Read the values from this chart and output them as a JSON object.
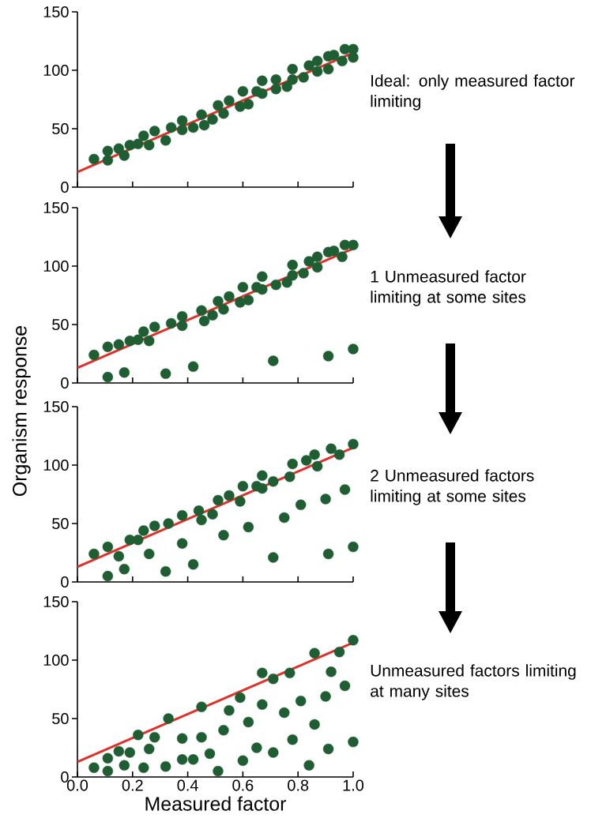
{
  "chart_data": [
    {
      "type": "scatter",
      "xlim": [
        0,
        1
      ],
      "ylim": [
        0,
        150
      ],
      "xticks": [
        {
          "value": 0,
          "label": null
        },
        {
          "value": 0.2,
          "label": null
        },
        {
          "value": 0.4,
          "label": null
        },
        {
          "value": 0.6,
          "label": null
        },
        {
          "value": 0.8,
          "label": null
        },
        {
          "value": 1,
          "label": null
        }
      ],
      "yticks": [
        0,
        50,
        100,
        150
      ],
      "tick_labels": "y",
      "marker": "circle",
      "annotations": [
        "Ideal: only measured factor limiting"
      ],
      "series": [
        {
          "color": "#1e5e32",
          "x": [
            0.06,
            0.11,
            0.11,
            0.15,
            0.17,
            0.19,
            0.22,
            0.24,
            0.26,
            0.28,
            0.32,
            0.34,
            0.38,
            0.38,
            0.42,
            0.45,
            0.46,
            0.49,
            0.51,
            0.53,
            0.55,
            0.59,
            0.6,
            0.62,
            0.65,
            0.67,
            0.67,
            0.72,
            0.72,
            0.76,
            0.78,
            0.78,
            0.82,
            0.84,
            0.87,
            0.87,
            0.91,
            0.91,
            0.93,
            0.96,
            0.97,
            1.0,
            1.0
          ],
          "values": [
            24,
            31,
            23,
            33,
            27,
            36,
            37,
            44,
            36,
            48,
            40,
            51,
            57,
            49,
            51,
            62,
            53,
            58,
            70,
            63,
            74,
            69,
            82,
            71,
            82,
            91,
            80,
            92,
            84,
            86,
            101,
            92,
            94,
            104,
            108,
            99,
            112,
            101,
            113,
            108,
            118,
            118,
            111
          ]
        },
        {
          "type": "line",
          "color": "#e0302a",
          "marker": "none",
          "x": [
            0,
            1
          ],
          "values": [
            13,
            115
          ]
        }
      ]
    },
    {
      "type": "scatter",
      "xlim": [
        0,
        1
      ],
      "ylim": [
        0,
        150
      ],
      "xticks": [
        {
          "value": 0,
          "label": null
        },
        {
          "value": 0.2,
          "label": null
        },
        {
          "value": 0.4,
          "label": null
        },
        {
          "value": 0.6,
          "label": null
        },
        {
          "value": 0.8,
          "label": null
        },
        {
          "value": 1,
          "label": null
        }
      ],
      "yticks": [
        0,
        50,
        100,
        150
      ],
      "tick_labels": "y",
      "marker": "circle",
      "ylabel": "Organism response",
      "annotations": [
        "1 Unmeasured factor limiting at some sites"
      ],
      "series": [
        {
          "color": "#1e5e32",
          "x": [
            0.06,
            0.11,
            0.15,
            0.19,
            0.22,
            0.24,
            0.26,
            0.28,
            0.34,
            0.38,
            0.38,
            0.45,
            0.46,
            0.49,
            0.51,
            0.53,
            0.55,
            0.59,
            0.6,
            0.62,
            0.65,
            0.67,
            0.67,
            0.72,
            0.76,
            0.78,
            0.78,
            0.82,
            0.84,
            0.87,
            0.87,
            0.91,
            0.93,
            0.96,
            0.97,
            1.0,
            0.11,
            0.17,
            0.32,
            0.42,
            0.71,
            0.91,
            1.0
          ],
          "values": [
            24,
            31,
            33,
            36,
            37,
            44,
            36,
            48,
            51,
            57,
            49,
            62,
            53,
            58,
            70,
            63,
            74,
            69,
            82,
            71,
            82,
            91,
            80,
            84,
            86,
            101,
            92,
            94,
            104,
            108,
            99,
            112,
            113,
            108,
            118,
            118,
            5,
            9,
            8,
            14,
            19,
            23,
            29
          ]
        },
        {
          "type": "line",
          "color": "#e0302a",
          "marker": "none",
          "x": [
            0,
            1
          ],
          "values": [
            13,
            115
          ]
        }
      ]
    },
    {
      "type": "scatter",
      "xlim": [
        0,
        1
      ],
      "ylim": [
        0,
        150
      ],
      "xticks": [
        {
          "value": 0,
          "label": null
        },
        {
          "value": 0.2,
          "label": null
        },
        {
          "value": 0.4,
          "label": null
        },
        {
          "value": 0.6,
          "label": null
        },
        {
          "value": 0.8,
          "label": null
        },
        {
          "value": 1,
          "label": null
        }
      ],
      "yticks": [
        0,
        50,
        100,
        150
      ],
      "tick_labels": "y",
      "marker": "circle",
      "annotations": [
        "2 Unmeasured factors limiting at some sites"
      ],
      "series": [
        {
          "color": "#1e5e32",
          "x": [
            0.06,
            0.11,
            0.22,
            0.24,
            0.28,
            0.33,
            0.38,
            0.44,
            0.45,
            0.49,
            0.51,
            0.55,
            0.59,
            0.6,
            0.65,
            0.67,
            0.67,
            0.71,
            0.77,
            0.78,
            0.83,
            0.86,
            0.87,
            0.92,
            0.95,
            1.0,
            0.11,
            0.15,
            0.17,
            0.19,
            0.26,
            0.32,
            0.38,
            0.42,
            0.53,
            0.62,
            0.71,
            0.75,
            0.81,
            0.9,
            0.91,
            0.97,
            1.0
          ],
          "values": [
            24,
            30,
            36,
            44,
            48,
            50,
            57,
            61,
            53,
            58,
            70,
            74,
            69,
            82,
            82,
            91,
            80,
            86,
            90,
            101,
            104,
            109,
            99,
            114,
            109,
            118,
            5,
            22,
            11,
            36,
            24,
            9,
            33,
            15,
            40,
            47,
            21,
            55,
            66,
            71,
            24,
            79,
            30
          ]
        },
        {
          "type": "line",
          "color": "#e0302a",
          "marker": "none",
          "x": [
            0,
            1
          ],
          "values": [
            13,
            115
          ]
        }
      ]
    },
    {
      "type": "scatter",
      "xlim": [
        0,
        1
      ],
      "ylim": [
        0,
        150
      ],
      "xticks": [
        {
          "value": 0,
          "label": "0.0"
        },
        0.2,
        0.4,
        0.6,
        0.8,
        {
          "value": 1,
          "label": "1.0"
        }
      ],
      "yticks": [
        0,
        50,
        100,
        150
      ],
      "marker": "circle",
      "xlabel": "Measured factor",
      "annotations": [
        "Unmeasured factors limiting at many sites"
      ],
      "series": [
        {
          "color": "#1e5e32",
          "x": [
            0.06,
            0.11,
            0.11,
            0.15,
            0.17,
            0.19,
            0.22,
            0.24,
            0.26,
            0.28,
            0.32,
            0.33,
            0.38,
            0.38,
            0.42,
            0.45,
            0.45,
            0.48,
            0.51,
            0.53,
            0.55,
            0.59,
            0.6,
            0.62,
            0.65,
            0.67,
            0.67,
            0.71,
            0.71,
            0.75,
            0.77,
            0.78,
            0.81,
            0.84,
            0.86,
            0.86,
            0.9,
            0.91,
            0.92,
            0.95,
            0.97,
            1.0,
            1.0
          ],
          "values": [
            8,
            16,
            5,
            22,
            10,
            21,
            36,
            8,
            24,
            34,
            9,
            50,
            33,
            15,
            15,
            60,
            34,
            20,
            5,
            40,
            57,
            68,
            14,
            47,
            25,
            62,
            89,
            84,
            21,
            55,
            89,
            32,
            65,
            10,
            106,
            45,
            69,
            24,
            90,
            107,
            78,
            117,
            30
          ]
        },
        {
          "type": "line",
          "color": "#e0302a",
          "marker": "none",
          "x": [
            0,
            1
          ],
          "values": [
            13,
            115
          ]
        }
      ]
    }
  ]
}
